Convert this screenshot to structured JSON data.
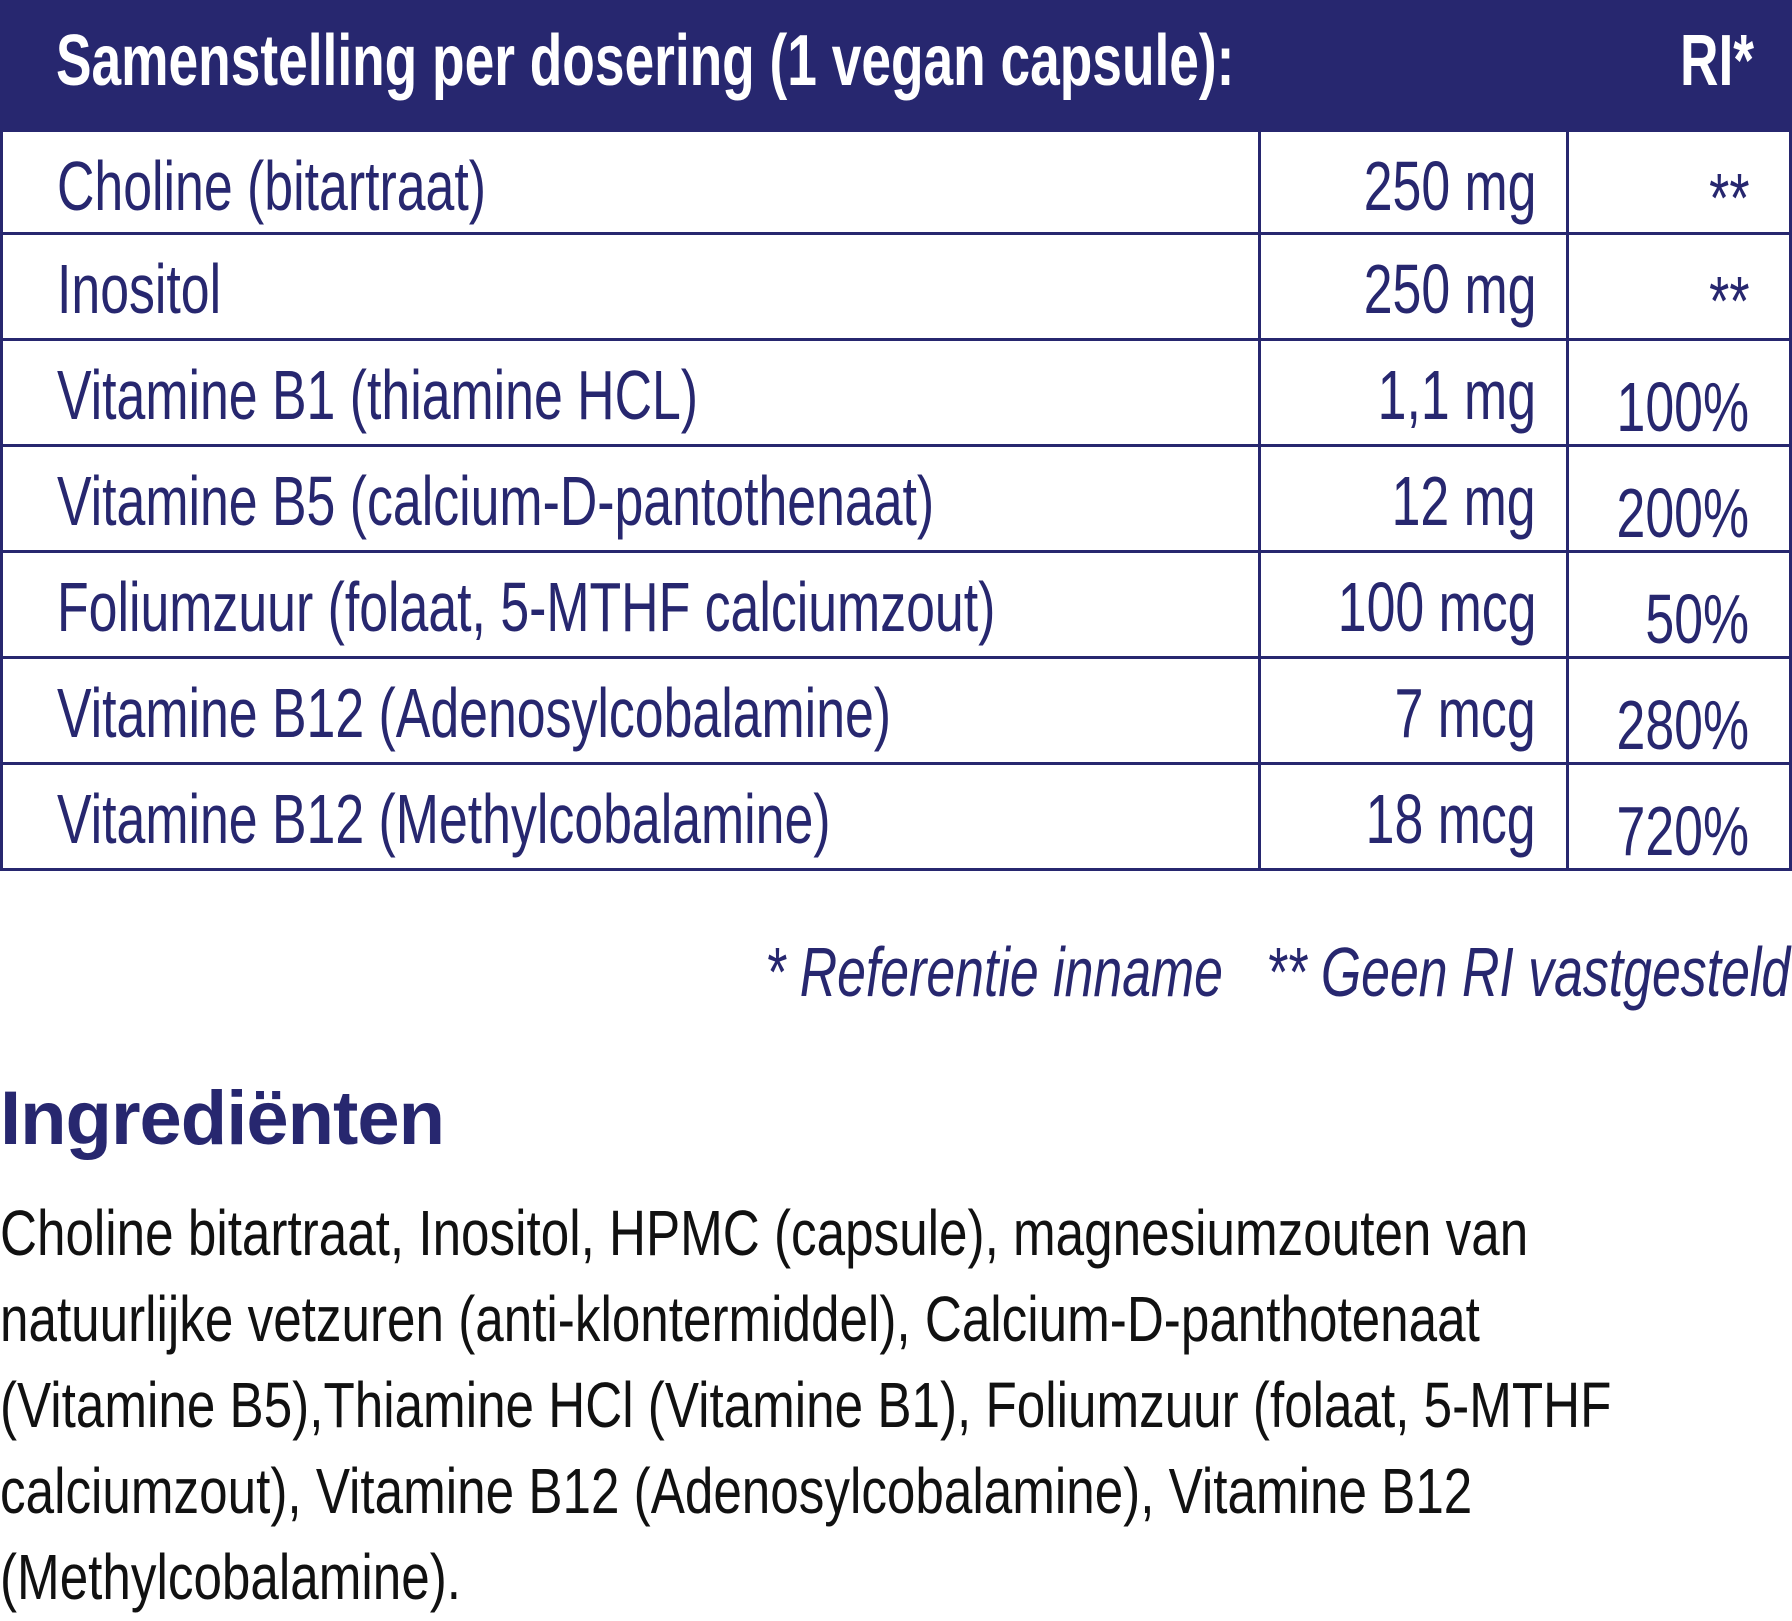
{
  "header": {
    "title": "Samenstelling per dosering (1 vegan capsule):",
    "ri": "RI*"
  },
  "rows": [
    {
      "name": "Choline (bitartraat)",
      "amount": "250 mg",
      "ri": "**"
    },
    {
      "name": "Inositol",
      "amount": "250 mg",
      "ri": "**"
    },
    {
      "name": "Vitamine B1 (thiamine HCL)",
      "amount": "1,1 mg",
      "ri": "100%"
    },
    {
      "name": "Vitamine B5 (calcium-D-pantothenaat)",
      "amount": "12 mg",
      "ri": "200%"
    },
    {
      "name": "Foliumzuur (folaat, 5-MTHF calciumzout)",
      "amount": "100 mcg",
      "ri": "50%"
    },
    {
      "name": "Vitamine B12 (Adenosylcobalamine)",
      "amount": "7 mcg",
      "ri": "280%"
    },
    {
      "name": "Vitamine B12 (Methylcobalamine)",
      "amount": "18 mcg",
      "ri": "720%"
    }
  ],
  "footnote": "* Referentie inname   ** Geen RI vastgesteld",
  "ingredients": {
    "title": "Ingrediënten",
    "lines": [
      "Choline bitartraat, Inositol, HPMC (capsule), magnesiumzouten van",
      "natuurlijke vetzuren (anti-klontermiddel), Calcium-D-panthotenaat",
      "(Vitamine B5),Thiamine HCl (Vitamine B1), Foliumzuur (folaat, 5-MTHF",
      "calciumzout), Vitamine B12 (Adenosylcobalamine), Vitamine B12",
      "(Methylcobalamine)."
    ]
  }
}
